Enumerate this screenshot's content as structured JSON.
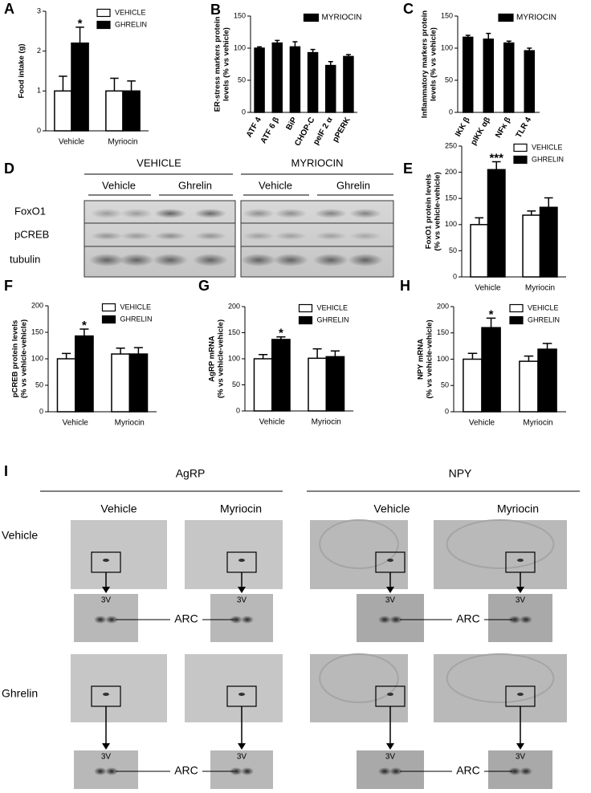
{
  "chart_data": [
    {
      "type": "bar",
      "panel_label": "A",
      "ylabel": [
        "Food intake (g)"
      ],
      "categories": [
        "Vehicle",
        "Myriocin"
      ],
      "series": [
        {
          "name": "VEHICLE",
          "color": "#ffffff",
          "values": [
            1.0,
            1.0
          ],
          "errors": [
            0.37,
            0.32
          ]
        },
        {
          "name": "GHRELIN",
          "color": "#000000",
          "values": [
            2.2,
            1.0
          ],
          "errors": [
            0.4,
            0.25
          ]
        }
      ],
      "ylim": [
        0,
        3
      ],
      "yticks": [
        0,
        1,
        2,
        3
      ],
      "legend": "upper right",
      "annotations": [
        {
          "text": "*",
          "category": "Vehicle",
          "series": "GHRELIN"
        }
      ]
    },
    {
      "type": "bar",
      "panel_label": "B",
      "ylabel": [
        "ER-stress markers protein",
        "levels (% vs vehicle)"
      ],
      "categories": [
        "ATF 4",
        "ATF 6 β",
        "BiP",
        "CHOP-C",
        "peIF 2 α",
        "pPERK"
      ],
      "series": [
        {
          "name": "MYRIOCIN",
          "color": "#000000",
          "values": [
            100,
            108,
            102,
            93,
            73,
            87
          ],
          "errors": [
            2,
            4,
            8,
            5,
            6,
            3
          ]
        }
      ],
      "ylim": [
        0,
        150
      ],
      "yticks": [
        0,
        50,
        100,
        150
      ],
      "legend": "upper right"
    },
    {
      "type": "bar",
      "panel_label": "C",
      "ylabel": [
        "Inflammatory markers protein",
        "levels (% vs vehicle)"
      ],
      "categories": [
        "IKK β",
        "pIKK αβ",
        "NFκ β",
        "TLR 4"
      ],
      "series": [
        {
          "name": "MYRIOCIN",
          "color": "#000000",
          "values": [
            117,
            114,
            108,
            96
          ],
          "errors": [
            3,
            9,
            3,
            4
          ]
        }
      ],
      "ylim": [
        0,
        150
      ],
      "yticks": [
        0,
        50,
        100,
        150
      ],
      "legend": "upper right"
    },
    {
      "type": "bar",
      "panel_label": "E",
      "ylabel": [
        "FoxO1 protein levels",
        "(% vs vehicle-vehicle)"
      ],
      "categories": [
        "Vehicle",
        "Myriocin"
      ],
      "series": [
        {
          "name": "VEHICLE",
          "color": "#ffffff",
          "values": [
            100,
            118
          ],
          "errors": [
            13,
            8
          ]
        },
        {
          "name": "GHRELIN",
          "color": "#000000",
          "values": [
            205,
            133
          ],
          "errors": [
            15,
            18
          ]
        }
      ],
      "ylim": [
        0,
        250
      ],
      "yticks": [
        0,
        50,
        100,
        150,
        200,
        250
      ],
      "legend": "upper right",
      "annotations": [
        {
          "text": "***",
          "category": "Vehicle",
          "series": "GHRELIN"
        }
      ]
    },
    {
      "type": "bar",
      "panel_label": "F",
      "ylabel": [
        "pCREB protein levels",
        "(% vs vehicle-vehicle)"
      ],
      "categories": [
        "Vehicle",
        "Myriocin"
      ],
      "series": [
        {
          "name": "VEHICLE",
          "color": "#ffffff",
          "values": [
            100,
            109
          ],
          "errors": [
            10,
            11
          ]
        },
        {
          "name": "GHRELIN",
          "color": "#000000",
          "values": [
            143,
            109
          ],
          "errors": [
            13,
            12
          ]
        }
      ],
      "ylim": [
        0,
        200
      ],
      "yticks": [
        0,
        50,
        100,
        150,
        200
      ],
      "legend": "upper right",
      "annotations": [
        {
          "text": "*",
          "category": "Vehicle",
          "series": "GHRELIN"
        }
      ]
    },
    {
      "type": "bar",
      "panel_label": "G",
      "ylabel": [
        "AgRP mRNA",
        "(% vs vehicle-vehicle)"
      ],
      "categories": [
        "Vehicle",
        "Myriocin"
      ],
      "series": [
        {
          "name": "VEHICLE",
          "color": "#ffffff",
          "values": [
            100,
            101
          ],
          "errors": [
            8,
            18
          ]
        },
        {
          "name": "GHRELIN",
          "color": "#000000",
          "values": [
            137,
            104
          ],
          "errors": [
            5,
            11
          ]
        }
      ],
      "ylim": [
        0,
        200
      ],
      "yticks": [
        0,
        50,
        100,
        150,
        200
      ],
      "legend": "upper right",
      "annotations": [
        {
          "text": "*",
          "category": "Vehicle",
          "series": "GHRELIN"
        }
      ]
    },
    {
      "type": "bar",
      "panel_label": "H",
      "ylabel": [
        "NPY mRNA",
        "(% vs vehicle-vehicle)"
      ],
      "categories": [
        "Vehicle",
        "Myriocin"
      ],
      "series": [
        {
          "name": "VEHICLE",
          "color": "#ffffff",
          "values": [
            100,
            96
          ],
          "errors": [
            11,
            10
          ]
        },
        {
          "name": "GHRELIN",
          "color": "#000000",
          "values": [
            160,
            119
          ],
          "errors": [
            18,
            11
          ]
        }
      ],
      "ylim": [
        0,
        200
      ],
      "yticks": [
        0,
        50,
        100,
        150,
        200
      ],
      "legend": "upper right",
      "annotations": [
        {
          "text": "*",
          "category": "Vehicle",
          "series": "GHRELIN"
        }
      ]
    }
  ],
  "blot": {
    "panel_label": "D",
    "groups": [
      "VEHICLE",
      "MYRIOCIN"
    ],
    "lanes": [
      "Vehicle",
      "Ghrelin",
      "Vehicle",
      "Ghrelin"
    ],
    "rows": [
      "FoxO1",
      "pCREB",
      "tubulin"
    ]
  },
  "ish": {
    "panel_label": "I",
    "groups": [
      "AgRP",
      "NPY"
    ],
    "columns": [
      "Vehicle",
      "Myriocin",
      "Vehicle",
      "Myriocin"
    ],
    "rows": [
      "Vehicle",
      "Ghrelin"
    ],
    "ventricle": "3V",
    "nucleus": "ARC"
  }
}
